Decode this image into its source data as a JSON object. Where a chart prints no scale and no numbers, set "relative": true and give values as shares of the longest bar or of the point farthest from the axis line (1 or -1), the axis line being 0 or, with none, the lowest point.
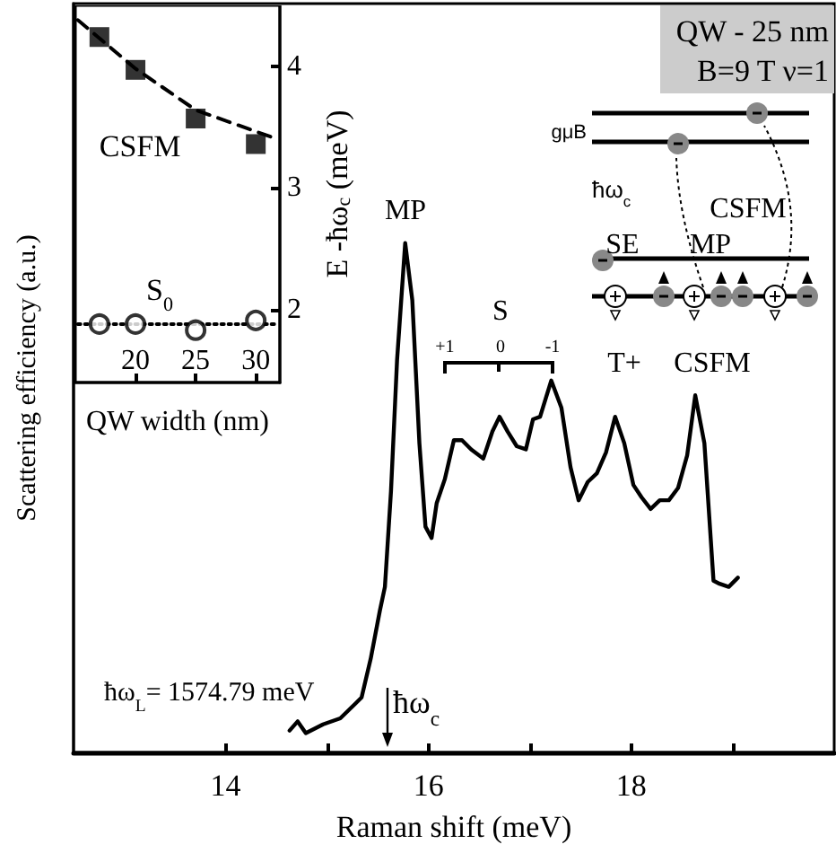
{
  "chart_data": [
    {
      "type": "line",
      "relative": true,
      "xlabel": "Raman shift (meV)",
      "ylabel": "Scattering efficiency (a.u.)",
      "color": "#000000",
      "x": [
        14.63,
        14.71,
        14.79,
        14.96,
        15.13,
        15.28,
        15.34,
        15.43,
        15.52,
        15.57,
        15.63,
        15.69,
        15.77,
        15.84,
        15.91,
        15.97,
        16.03,
        16.08,
        16.16,
        16.25,
        16.33,
        16.42,
        16.54,
        16.63,
        16.7,
        16.78,
        16.87,
        16.96,
        17.03,
        17.1,
        17.21,
        17.31,
        17.4,
        17.48,
        17.57,
        17.66,
        17.75,
        17.84,
        17.93,
        18.02,
        18.1,
        18.19,
        18.28,
        18.37,
        18.46,
        18.55,
        18.63,
        18.72,
        18.81,
        18.87,
        18.96,
        19.05
      ],
      "values": [
        0.043,
        0.061,
        0.038,
        0.055,
        0.067,
        0.096,
        0.108,
        0.184,
        0.278,
        0.325,
        0.513,
        0.771,
        1.0,
        0.888,
        0.607,
        0.443,
        0.421,
        0.489,
        0.536,
        0.613,
        0.613,
        0.595,
        0.577,
        0.63,
        0.659,
        0.63,
        0.601,
        0.595,
        0.654,
        0.659,
        0.73,
        0.677,
        0.56,
        0.495,
        0.531,
        0.548,
        0.589,
        0.659,
        0.607,
        0.525,
        0.501,
        0.478,
        0.495,
        0.495,
        0.519,
        0.583,
        0.701,
        0.607,
        0.337,
        0.331,
        0.325,
        0.343
      ],
      "xlim": [
        12.5,
        20
      ],
      "xticks": [
        14,
        {
          "value": 15,
          "label": null
        },
        16,
        {
          "value": 17,
          "label": null
        },
        18,
        {
          "value": 19,
          "label": null
        }
      ],
      "annotations": [
        "MP",
        "S",
        "+1",
        "0",
        "-1",
        "T+",
        "CSFM",
        "ħω$_{c}$",
        "ħω$_{L}$= 1574.79 meV",
        "QW - 25 nm",
        "B=9 T ν=1",
        "gμB",
        "ħω$_{c}$",
        "CSFM",
        "SE",
        "MP"
      ]
    },
    {
      "type": "scatter",
      "xlabel": "QW width (nm)",
      "ylabel": "E -ħω$_{c}$ (meV)",
      "xlim": [
        15,
        32
      ],
      "ylim": [
        1.4,
        4.5
      ],
      "xticks": [
        20,
        25,
        30
      ],
      "yticks": [
        2,
        3,
        4
      ],
      "series": [
        {
          "name": "CSFM",
          "marker": "square",
          "color": "#000000",
          "x": [
            17,
            20,
            25,
            30
          ],
          "values": [
            4.24,
            3.97,
            3.57,
            3.36
          ]
        },
        {
          "name": "S$_{0}$",
          "marker": "circle",
          "color": "#000000",
          "x": [
            17,
            20,
            25,
            30
          ],
          "values": [
            1.88,
            1.88,
            1.83,
            1.91
          ]
        },
        {
          "type": "line",
          "line_style": "dashed",
          "color": "#000000",
          "x": [
            15.2,
            20,
            25,
            31.8
          ],
          "values": [
            4.38,
            3.98,
            3.64,
            3.4
          ]
        },
        {
          "type": "line",
          "line_style": "dotted",
          "color": "#000000",
          "x": [
            15.2,
            31.8
          ],
          "values": [
            1.88,
            1.88
          ]
        }
      ]
    }
  ]
}
